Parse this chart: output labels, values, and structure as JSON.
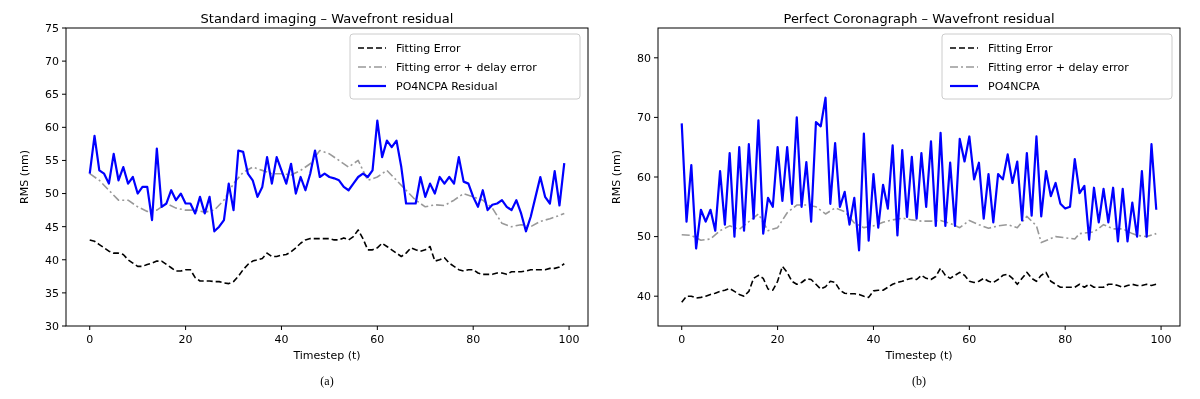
{
  "chart_data": [
    {
      "type": "line",
      "title": "Standard imaging – Wavefront residual",
      "xlabel": "Timestep (t)",
      "ylabel": "RMS (nm)",
      "annotations": [
        "(a)"
      ],
      "legend": "top right",
      "grid": false,
      "xlim": [
        -4.95,
        103.95
      ],
      "xticks": [
        0,
        20,
        40,
        60,
        80,
        100
      ],
      "ylim": [
        30,
        75
      ],
      "yticks": [
        30,
        35,
        40,
        45,
        50,
        55,
        60,
        65,
        70,
        75
      ],
      "x": [
        0,
        1,
        2,
        3,
        4,
        5,
        6,
        7,
        8,
        9,
        10,
        11,
        12,
        13,
        14,
        15,
        16,
        17,
        18,
        19,
        20,
        21,
        22,
        23,
        24,
        25,
        26,
        27,
        28,
        29,
        30,
        31,
        32,
        33,
        34,
        35,
        36,
        37,
        38,
        39,
        40,
        41,
        42,
        43,
        44,
        45,
        46,
        47,
        48,
        49,
        50,
        51,
        52,
        53,
        54,
        55,
        56,
        57,
        58,
        59,
        60,
        61,
        62,
        63,
        64,
        65,
        66,
        67,
        68,
        69,
        70,
        71,
        72,
        73,
        74,
        75,
        76,
        77,
        78,
        79,
        80,
        81,
        82,
        83,
        84,
        85,
        86,
        87,
        88,
        89,
        90,
        91,
        92,
        93,
        94,
        95,
        96,
        97,
        98,
        99
      ],
      "series": [
        {
          "name": "Fitting Error",
          "color": "#000000",
          "line_style": "dashed",
          "values": [
            43,
            42.8,
            42.3,
            41.8,
            41.3,
            41,
            41,
            40.8,
            40,
            39.5,
            39,
            39,
            39.3,
            39.5,
            39.8,
            39.8,
            39.3,
            38.8,
            38.3,
            38.3,
            38.5,
            38.5,
            37.3,
            36.8,
            36.8,
            36.8,
            36.7,
            36.7,
            36.5,
            36.4,
            36.7,
            37.5,
            38.5,
            39.3,
            39.8,
            40,
            40.2,
            41,
            40.5,
            40.5,
            40.7,
            40.8,
            41.2,
            41.8,
            42.5,
            43,
            43.2,
            43.2,
            43.2,
            43.2,
            43.2,
            43,
            43,
            43.3,
            43,
            43.5,
            44.5,
            43.2,
            41.5,
            41.5,
            41.8,
            42.5,
            42,
            41.5,
            41,
            40.5,
            41,
            41.8,
            41.5,
            41.3,
            41.5,
            42,
            39.8,
            40,
            40.3,
            39.5,
            39,
            38.5,
            38.3,
            38.5,
            38.5,
            38,
            37.8,
            37.8,
            37.8,
            38,
            38,
            37.8,
            38.2,
            38.2,
            38.2,
            38.3,
            38.5,
            38.5,
            38.5,
            38.5,
            38.7,
            38.7,
            38.9,
            39.4
          ]
        },
        {
          "name": "Fitting error + delay error",
          "color": "#999999",
          "line_style": "dashdot",
          "x": [
            0,
            2,
            4,
            6,
            8,
            10,
            12,
            14,
            16,
            18,
            20,
            22,
            24,
            26,
            28,
            30,
            32,
            34,
            36,
            38,
            40,
            42,
            44,
            46,
            48,
            50,
            52,
            54,
            56,
            58,
            60,
            62,
            64,
            66,
            68,
            70,
            72,
            74,
            76,
            78,
            80,
            82,
            84,
            86,
            88,
            90,
            92,
            94,
            96,
            98,
            99
          ],
          "values": [
            53,
            52,
            50.5,
            49,
            49,
            48,
            47.3,
            47.5,
            48.5,
            47.8,
            47.5,
            47.5,
            47.2,
            47.5,
            49,
            51.5,
            53.2,
            54,
            53.5,
            53,
            53,
            52.8,
            53.5,
            54.5,
            56.5,
            56,
            55,
            54,
            55,
            52,
            52.5,
            53.5,
            52,
            50.5,
            49,
            48,
            48.3,
            48.2,
            49,
            50,
            49.5,
            49,
            47.8,
            45.5,
            45,
            45.3,
            45,
            45.8,
            46.2,
            46.7,
            47
          ]
        },
        {
          "name": "PO4NCPA Residual",
          "color": "#0000ff",
          "line_style": "solid",
          "values": [
            53,
            58.7,
            53.5,
            53,
            51.5,
            56,
            52,
            54,
            51.5,
            52.5,
            50,
            51,
            51,
            46,
            56.8,
            48,
            48.5,
            50.5,
            49,
            50,
            48.5,
            48.5,
            47,
            49.5,
            47,
            49.5,
            44.3,
            45,
            46,
            51.5,
            47.5,
            56.5,
            56.3,
            53,
            52,
            49.5,
            51,
            55.5,
            51.5,
            55.5,
            53.5,
            51.5,
            54.5,
            50,
            52.5,
            50.5,
            53,
            56.5,
            52.5,
            53,
            52.5,
            52.3,
            52,
            51,
            50.5,
            51.5,
            52.5,
            53,
            52.5,
            53.5,
            61,
            55.5,
            58,
            57,
            58,
            54,
            48.5,
            48.5,
            48.5,
            52.5,
            49.5,
            51.5,
            50,
            52.5,
            51.5,
            52.5,
            51.5,
            55.5,
            51.8,
            51.5,
            49.5,
            48,
            50.5,
            47.5,
            48.3,
            48.5,
            49,
            48,
            47.5,
            49,
            47,
            44.3,
            46.5,
            49.5,
            52.5,
            49.5,
            48.5,
            53.4,
            48.2,
            54.6
          ]
        }
      ]
    },
    {
      "type": "line",
      "title": "Perfect Coronagraph – Wavefront residual",
      "xlabel": "Timestep (t)",
      "ylabel": "RMS (nm)",
      "annotations": [
        "(b)"
      ],
      "legend": "top right",
      "grid": false,
      "xlim": [
        -4.95,
        103.95
      ],
      "xticks": [
        0,
        20,
        40,
        60,
        80,
        100
      ],
      "ylim": [
        35,
        85
      ],
      "yticks": [
        40,
        50,
        60,
        70,
        80
      ],
      "x": [
        0,
        1,
        2,
        3,
        4,
        5,
        6,
        7,
        8,
        9,
        10,
        11,
        12,
        13,
        14,
        15,
        16,
        17,
        18,
        19,
        20,
        21,
        22,
        23,
        24,
        25,
        26,
        27,
        28,
        29,
        30,
        31,
        32,
        33,
        34,
        35,
        36,
        37,
        38,
        39,
        40,
        41,
        42,
        43,
        44,
        45,
        46,
        47,
        48,
        49,
        50,
        51,
        52,
        53,
        54,
        55,
        56,
        57,
        58,
        59,
        60,
        61,
        62,
        63,
        64,
        65,
        66,
        67,
        68,
        69,
        70,
        71,
        72,
        73,
        74,
        75,
        76,
        77,
        78,
        79,
        80,
        81,
        82,
        83,
        84,
        85,
        86,
        87,
        88,
        89,
        90,
        91,
        92,
        93,
        94,
        95,
        96,
        97,
        98,
        99
      ],
      "series": [
        {
          "name": "Fitting Error",
          "color": "#000000",
          "line_style": "dashed",
          "values": [
            39,
            40,
            40,
            39.7,
            39.8,
            40,
            40.3,
            40.5,
            40.8,
            41,
            41.3,
            40.8,
            40.3,
            40,
            40.8,
            43,
            43.5,
            43,
            41.2,
            41,
            42.5,
            45,
            44,
            42.5,
            42,
            42.3,
            42.9,
            42.8,
            42,
            41.2,
            41.6,
            42.5,
            42.3,
            41,
            40.5,
            40.4,
            40.4,
            40.3,
            40,
            39.8,
            40.9,
            41,
            41,
            41.5,
            42,
            42.3,
            42.5,
            42.8,
            43,
            42.8,
            43.5,
            43,
            42.8,
            43.3,
            44.7,
            43.5,
            43,
            43.5,
            44,
            43.5,
            42.5,
            42.3,
            42.5,
            43,
            42.5,
            42.3,
            42.8,
            43.5,
            43.7,
            43,
            42,
            43,
            44,
            43,
            42.5,
            43.5,
            44,
            42.5,
            42,
            41.5,
            41.5,
            41.5,
            41.5,
            42,
            41.5,
            42,
            41.5,
            41.5,
            41.5,
            42,
            42,
            41.8,
            41.5,
            41.8,
            42,
            41.8,
            41.8,
            42,
            41.8,
            42
          ]
        },
        {
          "name": "Fitting error + delay error",
          "color": "#999999",
          "line_style": "dashdot",
          "x": [
            0,
            2,
            4,
            6,
            8,
            10,
            12,
            14,
            16,
            18,
            20,
            22,
            24,
            26,
            28,
            30,
            32,
            34,
            36,
            38,
            40,
            42,
            44,
            46,
            48,
            50,
            52,
            54,
            56,
            58,
            60,
            62,
            64,
            66,
            68,
            70,
            72,
            74,
            75,
            78,
            80,
            82,
            83,
            86,
            88,
            90,
            92,
            94,
            95,
            97,
            99
          ],
          "values": [
            50.3,
            50.2,
            49.4,
            49.6,
            51,
            51.8,
            51.2,
            52.5,
            53.8,
            51,
            51.5,
            54,
            55.3,
            55.3,
            55,
            53.8,
            54.8,
            54.2,
            52.3,
            51.5,
            51.8,
            52.4,
            52.8,
            53.1,
            52.8,
            52.6,
            52.6,
            52.7,
            52.2,
            51.5,
            52.7,
            52,
            51.4,
            51.8,
            52,
            51.5,
            53.4,
            51.8,
            49,
            50,
            49.8,
            49.6,
            50.5,
            50.8,
            52,
            51.3,
            51.3,
            50.5,
            50.2,
            50,
            50.5
          ]
        },
        {
          "name": "PO4NCPA",
          "color": "#0000ff",
          "line_style": "solid",
          "values": [
            69,
            52.5,
            62,
            48,
            54.5,
            52.5,
            54.5,
            51,
            61,
            52,
            64,
            50,
            65,
            51,
            65.5,
            53,
            69.5,
            50.5,
            56.5,
            55,
            65,
            56,
            65,
            55.5,
            70,
            55,
            62.5,
            52.5,
            69.2,
            68.5,
            73.3,
            55.5,
            65.7,
            55,
            57.5,
            52,
            56.5,
            47.7,
            67.3,
            49.3,
            60.5,
            51.5,
            58.7,
            54.7,
            65.3,
            50.2,
            64.5,
            53.3,
            63.4,
            53,
            64,
            55,
            66,
            51.8,
            67.4,
            51.8,
            62.4,
            51.8,
            66.4,
            62.6,
            66.8,
            59.6,
            62.4,
            53,
            60.5,
            52.4,
            60.5,
            59.6,
            63.8,
            59,
            62.6,
            52.7,
            64,
            53.5,
            66.8,
            53.4,
            61,
            56.8,
            59,
            55.5,
            54.7,
            55,
            63,
            57.3,
            58.5,
            49.5,
            58.2,
            52.4,
            58,
            52.4,
            58.2,
            49.2,
            58,
            49.2,
            55.7,
            50,
            61,
            50,
            65.5,
            54.5
          ]
        }
      ]
    }
  ]
}
